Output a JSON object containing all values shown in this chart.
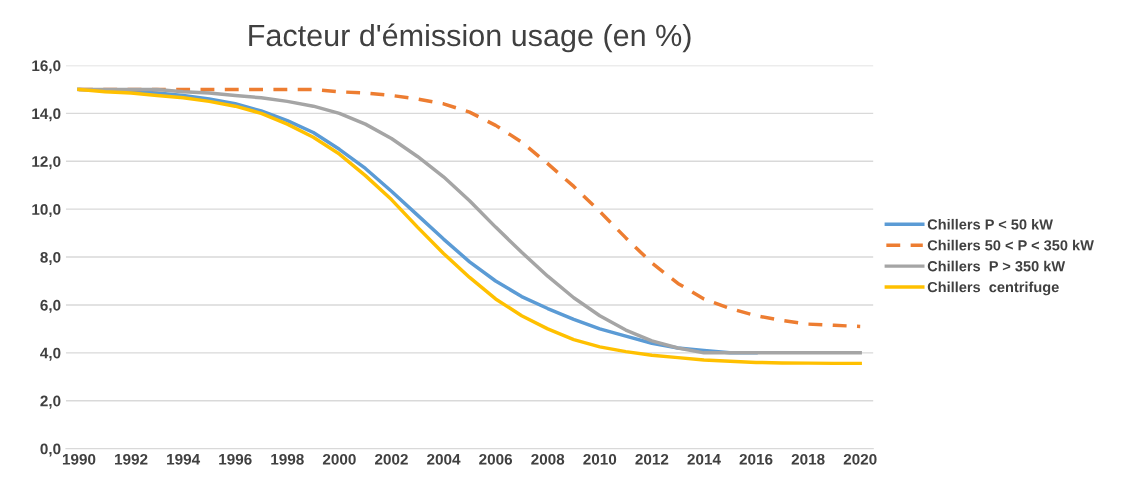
{
  "chart_data": {
    "type": "line",
    "title": "Facteur d'émission usage (en %)",
    "x": [
      1990,
      1991,
      1992,
      1993,
      1994,
      1995,
      1996,
      1997,
      1998,
      1999,
      2000,
      2001,
      2002,
      2003,
      2004,
      2005,
      2006,
      2007,
      2008,
      2009,
      2010,
      2011,
      2012,
      2013,
      2014,
      2015,
      2016,
      2017,
      2018,
      2019,
      2020
    ],
    "series": [
      {
        "name": "Chillers P < 50 kW",
        "color": "#5b9bd5",
        "line_style": "solid",
        "values": [
          15.0,
          14.95,
          14.9,
          14.85,
          14.75,
          14.6,
          14.4,
          14.1,
          13.7,
          13.2,
          12.5,
          11.7,
          10.75,
          9.75,
          8.75,
          7.8,
          7.0,
          6.35,
          5.85,
          5.4,
          5.0,
          4.7,
          4.4,
          4.2,
          4.1,
          4.0,
          4.0,
          null,
          null,
          null,
          null
        ]
      },
      {
        "name": "Chillers 50 < P < 350 kW",
        "color": "#ed7d31",
        "line_style": "dashed",
        "values": [
          15.0,
          15.0,
          15.0,
          15.0,
          15.0,
          15.0,
          15.0,
          15.0,
          15.0,
          15.0,
          14.9,
          14.85,
          14.75,
          14.6,
          14.4,
          14.05,
          13.5,
          12.8,
          11.9,
          10.95,
          9.9,
          8.8,
          7.75,
          6.9,
          6.25,
          5.85,
          5.55,
          5.35,
          5.2,
          5.15,
          5.1
        ]
      },
      {
        "name": "Chillers  P > 350 kW",
        "color": "#a5a5a5",
        "line_style": "solid",
        "values": [
          15.0,
          15.0,
          15.0,
          15.0,
          14.9,
          14.85,
          14.75,
          14.65,
          14.5,
          14.3,
          14.0,
          13.55,
          12.95,
          12.2,
          11.35,
          10.35,
          9.25,
          8.2,
          7.2,
          6.3,
          5.55,
          4.95,
          4.5,
          4.2,
          4.0,
          4.0,
          4.0,
          4.0,
          4.0,
          4.0,
          4.0
        ]
      },
      {
        "name": "Chillers  centrifuge",
        "color": "#ffc000",
        "line_style": "solid",
        "values": [
          15.0,
          14.9,
          14.85,
          14.75,
          14.65,
          14.5,
          14.3,
          14.0,
          13.55,
          13.0,
          12.3,
          11.4,
          10.4,
          9.25,
          8.15,
          7.15,
          6.25,
          5.55,
          5.0,
          4.55,
          4.25,
          4.05,
          3.9,
          3.8,
          3.7,
          3.65,
          3.6,
          3.58,
          3.57,
          3.56,
          3.56
        ]
      }
    ],
    "xlim": [
      1989.5,
      2020.5
    ],
    "xticks": [
      1990,
      1992,
      1994,
      1996,
      1998,
      2000,
      2002,
      2004,
      2006,
      2008,
      2010,
      2012,
      2014,
      2016,
      2018,
      2020
    ],
    "ylim": [
      0,
      16
    ],
    "yticks": [
      {
        "value": 0,
        "label": "0,0"
      },
      {
        "value": 2,
        "label": "2,0"
      },
      {
        "value": 4,
        "label": "4,0"
      },
      {
        "value": 6,
        "label": "6,0"
      },
      {
        "value": 8,
        "label": "8,0"
      },
      {
        "value": 10,
        "label": "10,0"
      },
      {
        "value": 12,
        "label": "12,0"
      },
      {
        "value": 14,
        "label": "14,0"
      },
      {
        "value": 16,
        "label": "16,0"
      }
    ],
    "grid": "y",
    "legend": "right",
    "marker": "none"
  }
}
